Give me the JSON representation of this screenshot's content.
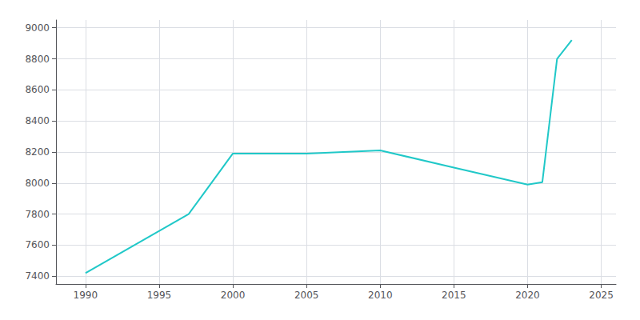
{
  "chart_data": {
    "type": "line",
    "x": [
      1990,
      1997,
      2000,
      2005,
      2010,
      2015,
      2020,
      2021,
      2022,
      2023
    ],
    "values": [
      7420,
      7800,
      8190,
      8190,
      8210,
      8100,
      7990,
      8005,
      8800,
      8920
    ],
    "color": "#20C8C8",
    "xlim": [
      1988,
      2026
    ],
    "ylim": [
      7350,
      9050
    ],
    "xticks": [
      1990,
      1995,
      2000,
      2005,
      2010,
      2015,
      2020,
      2025
    ],
    "yticks": [
      7400,
      7600,
      7800,
      8000,
      8200,
      8400,
      8600,
      8800,
      9000
    ],
    "grid": true
  }
}
